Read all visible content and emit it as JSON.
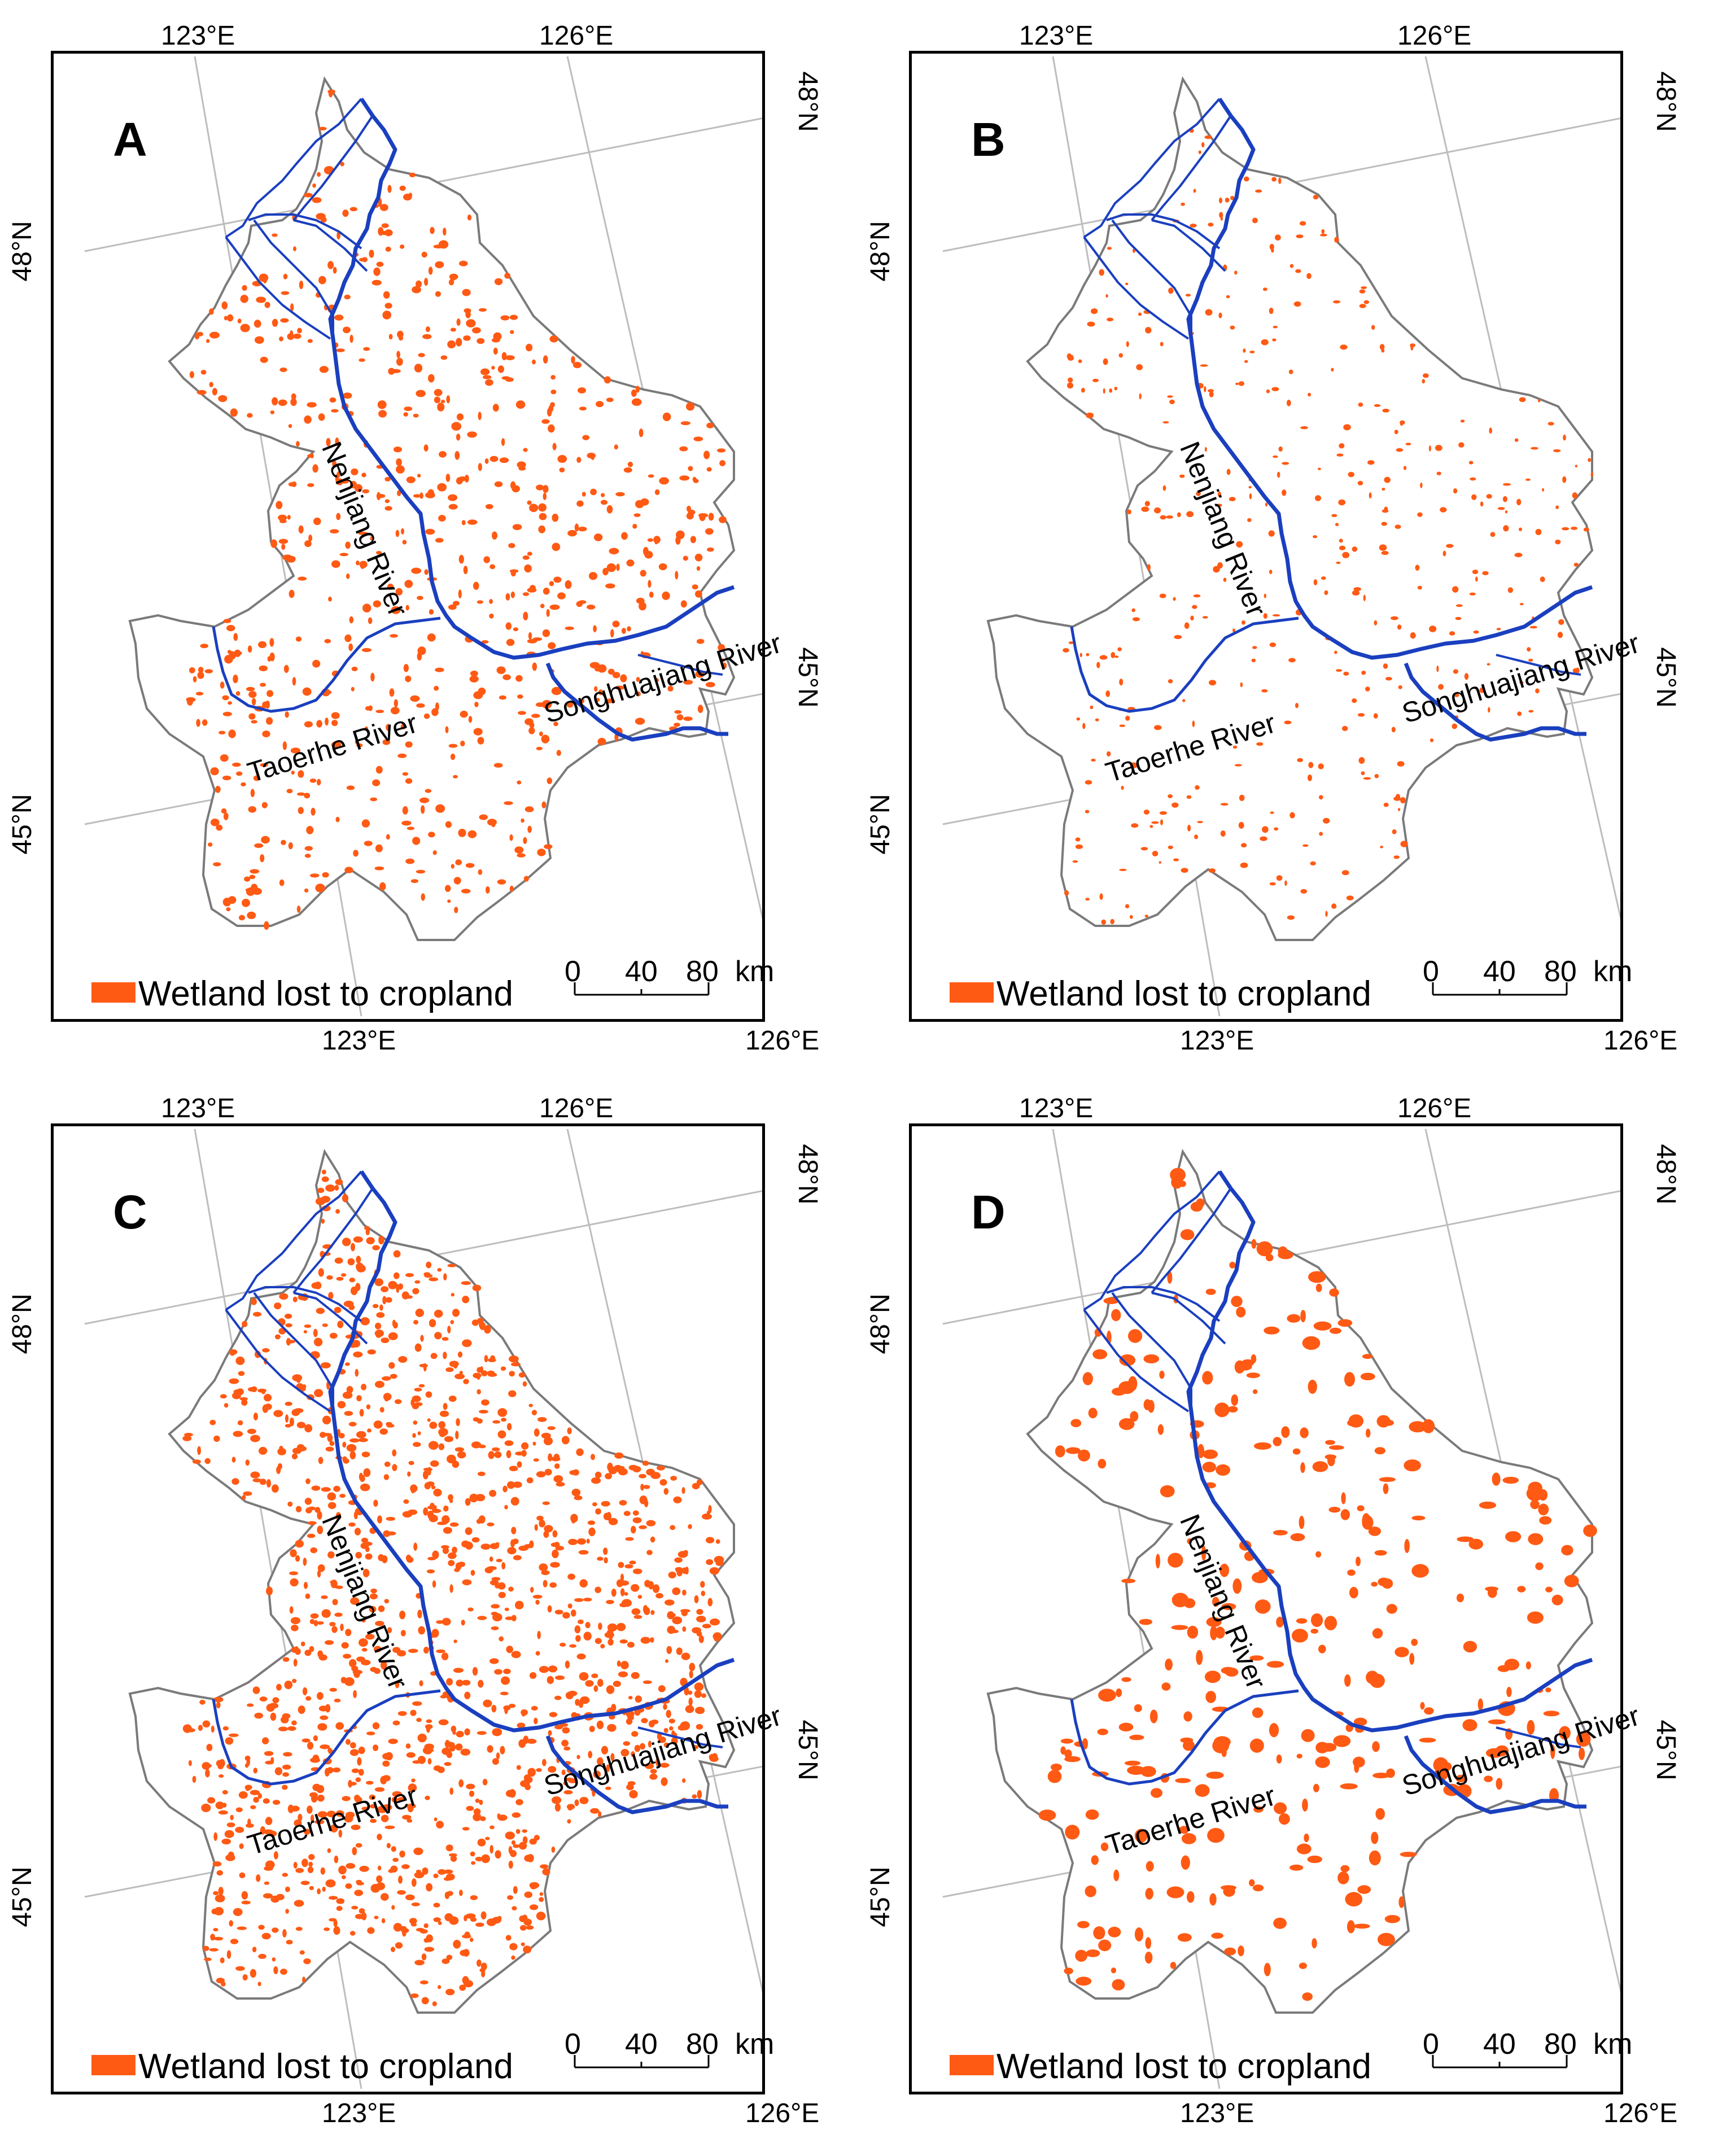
{
  "colors": {
    "wetland_loss": "#ff5a14",
    "river": "#1a3fbf",
    "boundary": "#7a7a7a",
    "graticule": "#bdbdbd",
    "frame": "#000000"
  },
  "legend": {
    "label": "Wetland lost to cropland"
  },
  "scale_bar": {
    "ticks": [
      "0",
      "40",
      "80"
    ],
    "unit": "km"
  },
  "graticule": {
    "lon_labels": [
      "123°E",
      "126°E"
    ],
    "lat_labels": [
      "48°N",
      "45°N"
    ]
  },
  "rivers": {
    "nenjiang": "Nenjiang River",
    "songhuajiang": "Songhuajiang River",
    "taoerhe": "Taoerhe River"
  },
  "panels": [
    {
      "letter": "A",
      "loss_density": "moderate"
    },
    {
      "letter": "B",
      "loss_density": "sparse"
    },
    {
      "letter": "C",
      "loss_density": "dense"
    },
    {
      "letter": "D",
      "loss_density": "patchy"
    }
  ]
}
